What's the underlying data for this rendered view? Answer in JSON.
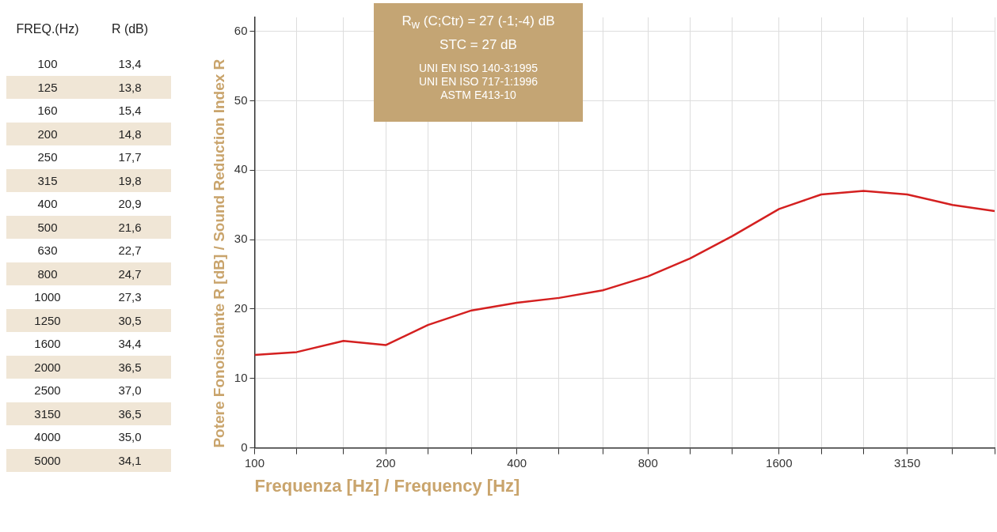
{
  "chart_data": [
    {
      "type": "other",
      "annotations": [
        "FREQ.(Hz)",
        "R (dB)",
        "100",
        "13,4",
        "125",
        "13,8",
        "160",
        "15,4",
        "200",
        "14,8",
        "250",
        "17,7",
        "315",
        "19,8",
        "400",
        "20,9",
        "500",
        "21,6",
        "630",
        "22,7",
        "800",
        "24,7",
        "1000",
        "27,3",
        "1250",
        "30,5",
        "1600",
        "34,4",
        "2000",
        "36,5",
        "2500",
        "37,0",
        "3150",
        "36,5",
        "4000",
        "35,0",
        "5000",
        "34,1"
      ]
    },
    {
      "type": "line",
      "xlabel": "Frequenza [Hz] / Frequency [Hz]",
      "ylabel": "Potere Fonoisolante R [dB] / Sound Reduction Index R",
      "annotations": [
        "R$_{w}$ (C;Ctr) = 27 (-1;-4) dB",
        "STC = 27 dB",
        "UNI EN ISO 140-3:1995",
        "UNI EN ISO 717-1:1996",
        "ASTM E413-10"
      ],
      "x": [
        100,
        125,
        160,
        200,
        250,
        315,
        400,
        500,
        630,
        800,
        1000,
        1250,
        1600,
        2000,
        2500,
        3150,
        4000,
        5000
      ],
      "series": [
        {
          "color": "#d42020",
          "values": [
            13.4,
            13.8,
            15.4,
            14.8,
            17.7,
            19.8,
            20.9,
            21.6,
            22.7,
            24.7,
            27.3,
            30.5,
            34.4,
            36.5,
            37.0,
            36.5,
            35.0,
            34.1
          ]
        }
      ],
      "log": "x",
      "xlim": [
        100,
        5000
      ],
      "xticks": [
        100,
        {
          "value": 125,
          "label": null
        },
        {
          "value": 160,
          "label": null
        },
        200,
        {
          "value": 250,
          "label": null
        },
        {
          "value": 315,
          "label": null
        },
        400,
        {
          "value": 500,
          "label": null
        },
        {
          "value": 630,
          "label": null
        },
        800,
        {
          "value": 1000,
          "label": null
        },
        {
          "value": 1250,
          "label": null
        },
        1600,
        {
          "value": 2000,
          "label": null
        },
        {
          "value": 2500,
          "label": null
        },
        3150,
        {
          "value": 4000,
          "label": null
        },
        {
          "value": 5000,
          "label": null
        }
      ],
      "ylim": [
        0,
        62
      ],
      "yticks": [
        0,
        10,
        20,
        30,
        40,
        50,
        60
      ],
      "grid": true,
      "legend": false,
      "marker": "none",
      "line_style": "solid"
    }
  ]
}
